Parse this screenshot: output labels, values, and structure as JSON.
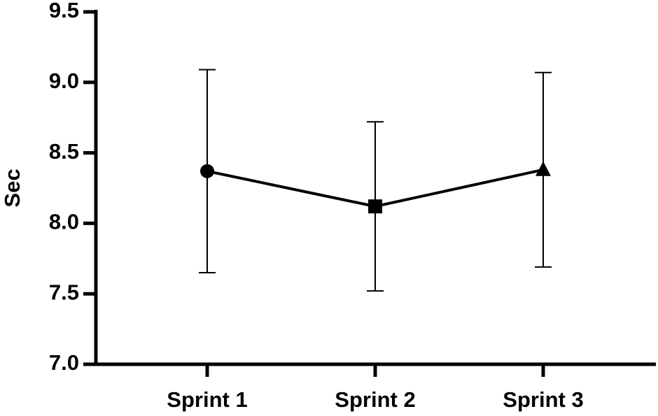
{
  "chart_data": {
    "type": "line",
    "y_label": "Sec",
    "categories": [
      "Sprint 1",
      "Sprint 2",
      "Sprint 3"
    ],
    "values": [
      8.37,
      8.12,
      8.38
    ],
    "errors": [
      0.72,
      0.6,
      0.69
    ],
    "markers": [
      "circle",
      "square",
      "triangle"
    ],
    "color": "#000000",
    "ylim": [
      7,
      9.5
    ],
    "yticks": [
      {
        "value": 7,
        "label": "7.0"
      },
      7.5,
      {
        "value": 8,
        "label": "8.0"
      },
      8.5,
      {
        "value": 9,
        "label": "9.0"
      },
      9.5
    ]
  }
}
